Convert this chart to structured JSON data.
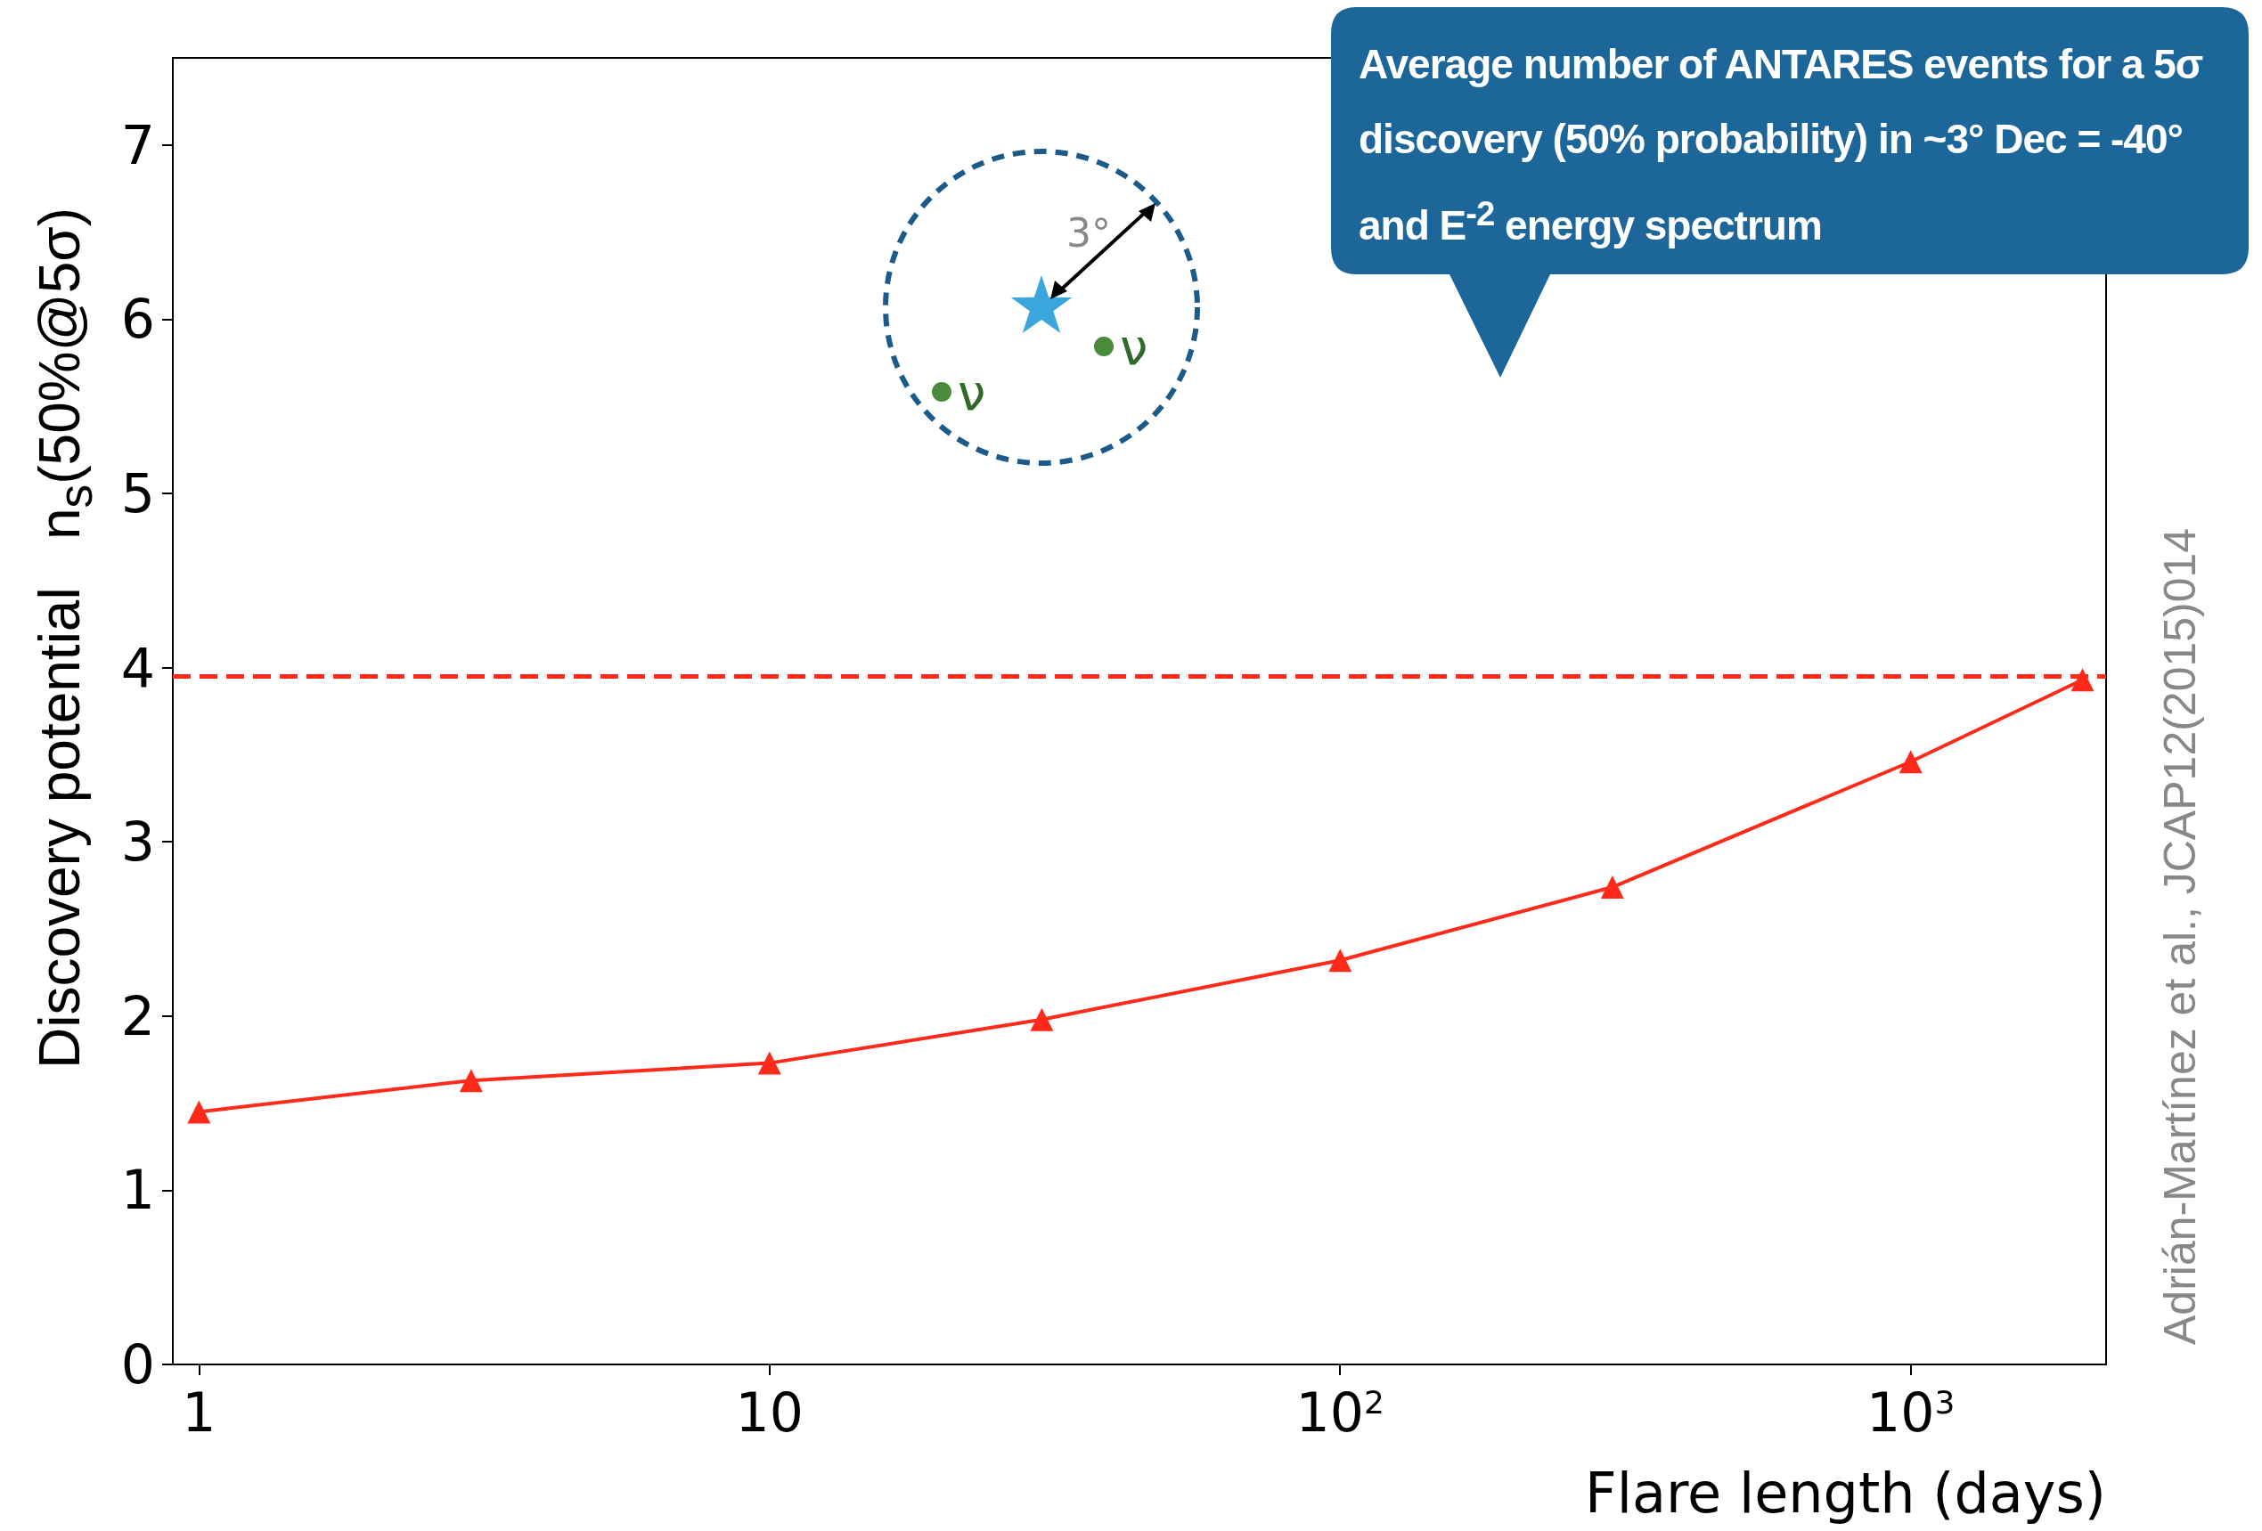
{
  "chart_data": {
    "type": "line",
    "xlabel": "Flare length (days)",
    "ylabel": "Discovery potential   n$_{s}$(50%@5σ)",
    "x": [
      1,
      3,
      10,
      30,
      100,
      300,
      1000,
      2000
    ],
    "series": [
      {
        "color": "#ff2a1a",
        "values": [
          1.45,
          1.63,
          1.73,
          1.98,
          2.32,
          2.74,
          3.46,
          3.93
        ]
      }
    ],
    "log": "x",
    "xlim": [
      0.9,
      2200
    ],
    "xticks": [
      1,
      10,
      {
        "value": 100,
        "label": "10$^{2}$"
      },
      {
        "value": 1000,
        "label": "10$^{3}$"
      }
    ],
    "ylim": [
      0,
      7.5
    ],
    "yticks": [
      0,
      1,
      2,
      3,
      4,
      5,
      6,
      7
    ],
    "marker": "triangle",
    "line_style": "solid",
    "ref_lines": [
      {
        "axis": "y",
        "value": 3.95,
        "color": "#ff2a1a",
        "line_style": "dashed"
      }
    ],
    "annotations": [
      "Average number of ANTARES events for a 5σ discovery (50% probability)  in ~3° Dec = -40° and E$^{-2}$ energy spectrum",
      "3°",
      "ν",
      "ν",
      "Adrián-Martínez et al., JCAP12(2015)014"
    ]
  }
}
